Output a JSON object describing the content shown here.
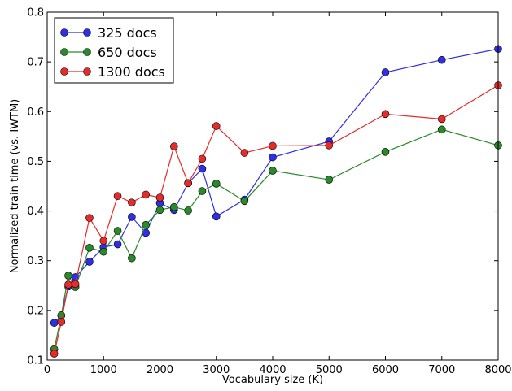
{
  "chart_data": {
    "type": "line",
    "title": "",
    "xlabel": "Vocabulary size (K)",
    "ylabel": "Normalized train time (vs. IWTM)",
    "xlim": [
      0,
      8000
    ],
    "ylim": [
      0.1,
      0.8
    ],
    "xticks": [
      0,
      1000,
      2000,
      3000,
      4000,
      5000,
      6000,
      7000,
      8000
    ],
    "yticks": [
      0.1,
      0.2,
      0.3,
      0.4,
      0.5,
      0.6,
      0.7,
      0.8
    ],
    "xtick_labels": [
      "0",
      "1000",
      "2000",
      "3000",
      "4000",
      "5000",
      "6000",
      "7000",
      "8000"
    ],
    "ytick_labels": [
      "0.1",
      "0.2",
      "0.3",
      "0.4",
      "0.5",
      "0.6",
      "0.7",
      "0.8"
    ],
    "grid": false,
    "legend_position": "top-left",
    "x": [
      125,
      250,
      375,
      500,
      750,
      1000,
      1250,
      1500,
      1750,
      2000,
      2250,
      2500,
      2750,
      3000,
      3500,
      4000,
      5000,
      6000,
      7000,
      8000
    ],
    "series": [
      {
        "name": "325 docs",
        "color": "#2f2fe6",
        "values": [
          0.175,
          0.19,
          0.248,
          0.267,
          0.298,
          0.327,
          0.333,
          0.388,
          0.356,
          0.416,
          0.402,
          0.456,
          0.485,
          0.389,
          0.423,
          0.508,
          0.54,
          0.679,
          0.704,
          0.726
        ]
      },
      {
        "name": "650 docs",
        "color": "#2a8a2a",
        "values": [
          0.122,
          0.19,
          0.27,
          0.247,
          0.326,
          0.318,
          0.36,
          0.305,
          0.372,
          0.402,
          0.408,
          0.401,
          0.44,
          0.455,
          0.42,
          0.481,
          0.463,
          0.519,
          0.564,
          0.532
        ]
      },
      {
        "name": "1300 docs",
        "color": "#e62b2b",
        "values": [
          0.113,
          0.177,
          0.252,
          0.253,
          0.386,
          0.34,
          0.43,
          0.417,
          0.433,
          0.427,
          0.53,
          0.456,
          0.505,
          0.571,
          0.517,
          0.531,
          0.532,
          0.595,
          0.585,
          0.653
        ]
      }
    ]
  }
}
